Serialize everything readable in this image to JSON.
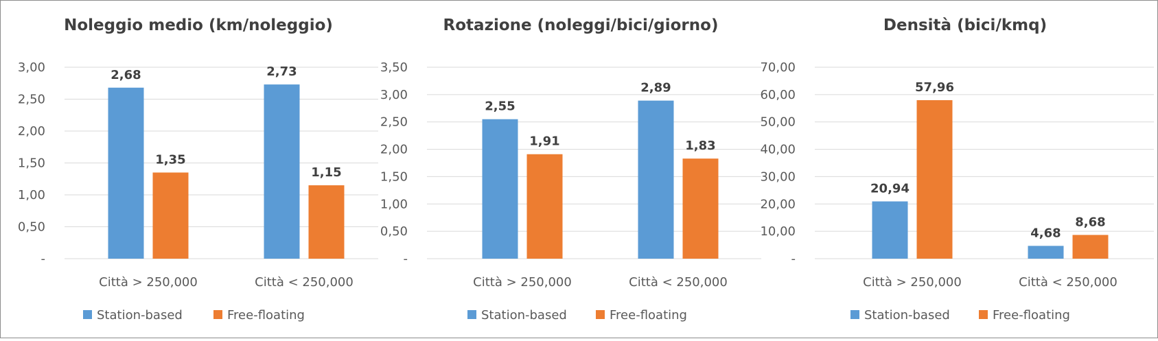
{
  "colors": {
    "station_based": "#5b9bd5",
    "free_floating": "#ed7d31",
    "grid": "#d9d9d9"
  },
  "chart_data": [
    {
      "type": "bar",
      "title": "Noleggio medio (km/noleggio)",
      "categories": [
        "Città > 250,000",
        "Città < 250,000"
      ],
      "series": [
        {
          "name": "Station-based",
          "values": [
            2.68,
            2.73
          ],
          "labels": [
            "2,68",
            "2,73"
          ]
        },
        {
          "name": "Free-floating",
          "values": [
            1.35,
            1.15
          ],
          "labels": [
            "1,35",
            "1,15"
          ]
        }
      ],
      "ylim": [
        0,
        3
      ],
      "yticks": [
        "-",
        "0,50",
        "1,00",
        "1,50",
        "2,00",
        "2,50",
        "3,00"
      ],
      "grid": true,
      "legend": "bottom"
    },
    {
      "type": "bar",
      "title": "Rotazione (noleggi/bici/giorno)",
      "categories": [
        "Città > 250,000",
        "Città < 250,000"
      ],
      "series": [
        {
          "name": "Station-based",
          "values": [
            2.55,
            2.89
          ],
          "labels": [
            "2,55",
            "2,89"
          ]
        },
        {
          "name": "Free-floating",
          "values": [
            1.91,
            1.83
          ],
          "labels": [
            "1,91",
            "1,83"
          ]
        }
      ],
      "ylim": [
        0,
        3.5
      ],
      "yticks": [
        "-",
        "0,50",
        "1,00",
        "1,50",
        "2,00",
        "2,50",
        "3,00",
        "3,50"
      ],
      "grid": true,
      "legend": "bottom"
    },
    {
      "type": "bar",
      "title": "Densità (bici/kmq)",
      "categories": [
        "Città > 250,000",
        "Città < 250,000"
      ],
      "series": [
        {
          "name": "Station-based",
          "values": [
            20.94,
            4.68
          ],
          "labels": [
            "20,94",
            "4,68"
          ]
        },
        {
          "name": "Free-floating",
          "values": [
            57.96,
            8.68
          ],
          "labels": [
            "57,96",
            "8,68"
          ]
        }
      ],
      "ylim": [
        0,
        70
      ],
      "yticks": [
        "-",
        "10,00",
        "20,00",
        "30,00",
        "40,00",
        "50,00",
        "60,00",
        "70,00"
      ],
      "grid": true,
      "legend": "bottom"
    }
  ]
}
